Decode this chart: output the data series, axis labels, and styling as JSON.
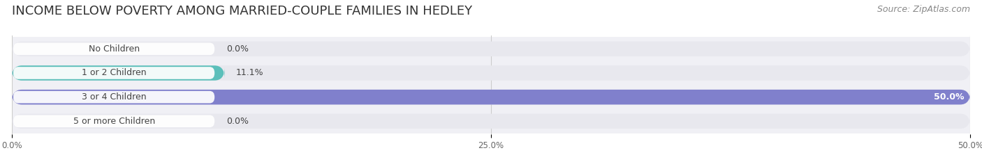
{
  "title": "INCOME BELOW POVERTY AMONG MARRIED-COUPLE FAMILIES IN HEDLEY",
  "source": "Source: ZipAtlas.com",
  "categories": [
    "No Children",
    "1 or 2 Children",
    "3 or 4 Children",
    "5 or more Children"
  ],
  "values": [
    0.0,
    11.1,
    50.0,
    0.0
  ],
  "bar_colors": [
    "#c9a8d4",
    "#5bbfba",
    "#8080cc",
    "#f4a0b8"
  ],
  "xlim": [
    0,
    50.0
  ],
  "xticks": [
    0.0,
    25.0,
    50.0
  ],
  "xtick_labels": [
    "0.0%",
    "25.0%",
    "50.0%"
  ],
  "title_fontsize": 13,
  "source_fontsize": 9,
  "bar_height": 0.62,
  "background_color": "#ffffff",
  "bar_bg_color": "#e8e8ee",
  "value_label_fontsize": 9,
  "category_fontsize": 9,
  "grid_color": "#cccccc",
  "row_colors": [
    "#f5f5f7",
    "#f5f5f7",
    "#f5f5f7",
    "#f5f5f7"
  ]
}
